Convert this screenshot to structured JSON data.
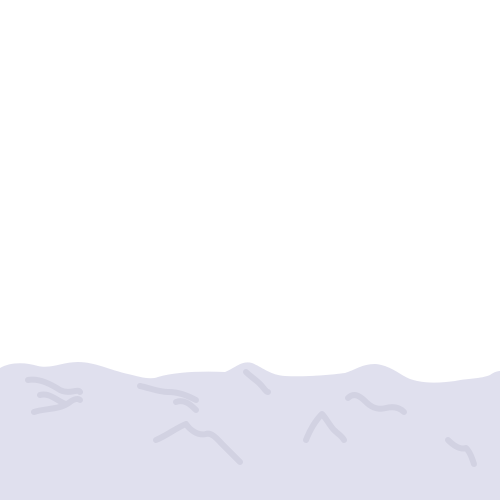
{
  "scene": {
    "background_color": "#ffffff",
    "ground_color": "#e0e0ee",
    "scribble_color": "#d2d2e2",
    "elements": {
      "ground": "snow-ground",
      "scribbles": "scribble-marks"
    }
  }
}
